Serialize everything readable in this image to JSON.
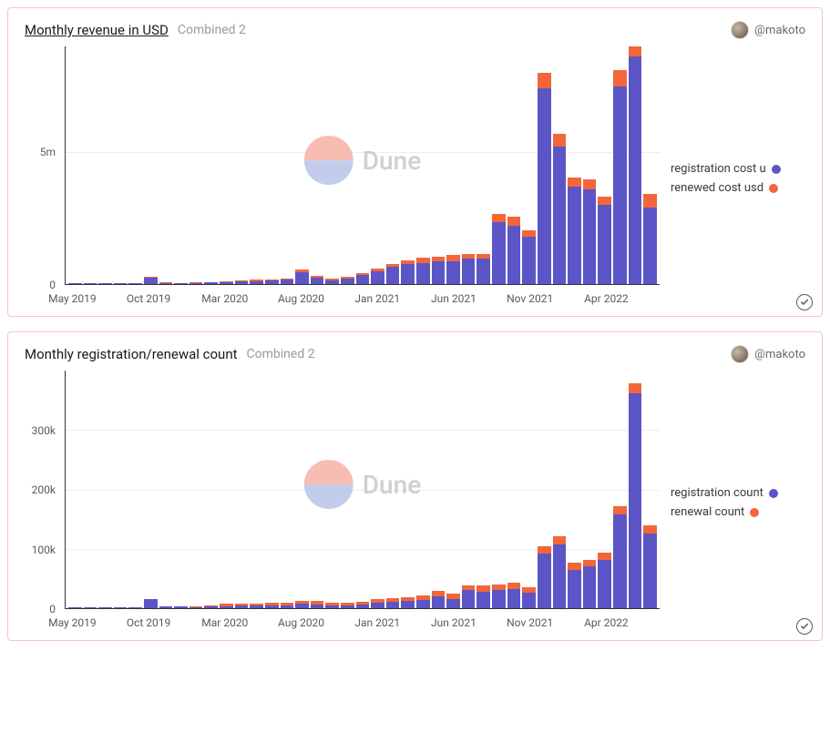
{
  "watermark": {
    "text": "Dune",
    "top_color": "#f6b1a5",
    "bottom_color": "#b8c4e8",
    "text_color": "#c8c8c8"
  },
  "author": {
    "handle": "@makoto"
  },
  "panel_border_color": "#f5c6c0",
  "charts": [
    {
      "title": "Monthly revenue in USD",
      "title_underline": true,
      "subtitle": "Combined 2",
      "type": "stacked-bar",
      "ylim": [
        0,
        9000000
      ],
      "yticks": [
        {
          "value": 0,
          "label": "0"
        },
        {
          "value": 5000000,
          "label": "5m"
        }
      ],
      "grid_color": "#eeeeee",
      "axis_color": "#333333",
      "tick_fontsize": 12,
      "legend": [
        {
          "label": "registration cost u",
          "color": "#5c55c5"
        },
        {
          "label": "renewed cost usd",
          "color": "#f2663a"
        }
      ],
      "series_colors": {
        "a": "#5c55c5",
        "b": "#f2663a"
      },
      "xticks": [
        {
          "index": 0,
          "label": "May 2019"
        },
        {
          "index": 5,
          "label": "Oct 2019"
        },
        {
          "index": 10,
          "label": "Mar 2020"
        },
        {
          "index": 15,
          "label": "Aug 2020"
        },
        {
          "index": 20,
          "label": "Jan 2021"
        },
        {
          "index": 25,
          "label": "Jun 2021"
        },
        {
          "index": 30,
          "label": "Nov 2021"
        },
        {
          "index": 35,
          "label": "Apr 2022"
        }
      ],
      "data": [
        {
          "a": 20000,
          "b": 0
        },
        {
          "a": 20000,
          "b": 0
        },
        {
          "a": 20000,
          "b": 0
        },
        {
          "a": 20000,
          "b": 0
        },
        {
          "a": 20000,
          "b": 0
        },
        {
          "a": 250000,
          "b": 10000
        },
        {
          "a": 50000,
          "b": 10000
        },
        {
          "a": 40000,
          "b": 10000
        },
        {
          "a": 40000,
          "b": 20000
        },
        {
          "a": 60000,
          "b": 20000
        },
        {
          "a": 80000,
          "b": 30000
        },
        {
          "a": 100000,
          "b": 40000
        },
        {
          "a": 120000,
          "b": 40000
        },
        {
          "a": 140000,
          "b": 40000
        },
        {
          "a": 160000,
          "b": 50000
        },
        {
          "a": 450000,
          "b": 100000
        },
        {
          "a": 250000,
          "b": 60000
        },
        {
          "a": 150000,
          "b": 50000
        },
        {
          "a": 200000,
          "b": 60000
        },
        {
          "a": 350000,
          "b": 80000
        },
        {
          "a": 500000,
          "b": 100000
        },
        {
          "a": 650000,
          "b": 120000
        },
        {
          "a": 750000,
          "b": 150000
        },
        {
          "a": 800000,
          "b": 200000
        },
        {
          "a": 850000,
          "b": 200000
        },
        {
          "a": 850000,
          "b": 250000
        },
        {
          "a": 950000,
          "b": 200000
        },
        {
          "a": 950000,
          "b": 200000
        },
        {
          "a": 2350000,
          "b": 300000
        },
        {
          "a": 2200000,
          "b": 350000
        },
        {
          "a": 1800000,
          "b": 250000
        },
        {
          "a": 7400000,
          "b": 600000
        },
        {
          "a": 5200000,
          "b": 500000
        },
        {
          "a": 3700000,
          "b": 350000
        },
        {
          "a": 3600000,
          "b": 350000
        },
        {
          "a": 3000000,
          "b": 300000
        },
        {
          "a": 7500000,
          "b": 600000
        },
        {
          "a": 8700000,
          "b": 400000
        },
        {
          "a": 2900000,
          "b": 500000
        }
      ]
    },
    {
      "title": "Monthly registration/renewal count",
      "title_underline": false,
      "subtitle": "Combined 2",
      "type": "stacked-bar",
      "ylim": [
        0,
        400000
      ],
      "yticks": [
        {
          "value": 0,
          "label": "0"
        },
        {
          "value": 100000,
          "label": "100k"
        },
        {
          "value": 200000,
          "label": "200k"
        },
        {
          "value": 300000,
          "label": "300k"
        }
      ],
      "grid_color": "#eeeeee",
      "axis_color": "#333333",
      "tick_fontsize": 12,
      "legend": [
        {
          "label": "registration count",
          "color": "#5c55c5"
        },
        {
          "label": "renewal count",
          "color": "#f2663a"
        }
      ],
      "series_colors": {
        "a": "#5c55c5",
        "b": "#f2663a"
      },
      "xticks": [
        {
          "index": 0,
          "label": "May 2019"
        },
        {
          "index": 5,
          "label": "Oct 2019"
        },
        {
          "index": 10,
          "label": "Mar 2020"
        },
        {
          "index": 15,
          "label": "Aug 2020"
        },
        {
          "index": 20,
          "label": "Jan 2021"
        },
        {
          "index": 25,
          "label": "Jun 2021"
        },
        {
          "index": 30,
          "label": "Nov 2021"
        },
        {
          "index": 35,
          "label": "Apr 2022"
        }
      ],
      "data": [
        {
          "a": 2000,
          "b": 0
        },
        {
          "a": 2000,
          "b": 0
        },
        {
          "a": 2000,
          "b": 0
        },
        {
          "a": 2000,
          "b": 0
        },
        {
          "a": 2000,
          "b": 0
        },
        {
          "a": 15000,
          "b": 500
        },
        {
          "a": 3000,
          "b": 500
        },
        {
          "a": 3000,
          "b": 800
        },
        {
          "a": 2000,
          "b": 1500
        },
        {
          "a": 2500,
          "b": 2500
        },
        {
          "a": 3500,
          "b": 3500
        },
        {
          "a": 4000,
          "b": 4000
        },
        {
          "a": 4500,
          "b": 3500
        },
        {
          "a": 5000,
          "b": 4000
        },
        {
          "a": 5000,
          "b": 3500
        },
        {
          "a": 7000,
          "b": 6000
        },
        {
          "a": 6000,
          "b": 6000
        },
        {
          "a": 4000,
          "b": 4500
        },
        {
          "a": 5000,
          "b": 5000
        },
        {
          "a": 6000,
          "b": 5500
        },
        {
          "a": 9000,
          "b": 6000
        },
        {
          "a": 10000,
          "b": 6500
        },
        {
          "a": 12000,
          "b": 6500
        },
        {
          "a": 14000,
          "b": 8000
        },
        {
          "a": 20000,
          "b": 9000
        },
        {
          "a": 16000,
          "b": 8000
        },
        {
          "a": 30000,
          "b": 9000
        },
        {
          "a": 28000,
          "b": 10000
        },
        {
          "a": 30000,
          "b": 10000
        },
        {
          "a": 32000,
          "b": 11000
        },
        {
          "a": 26000,
          "b": 10000
        },
        {
          "a": 92000,
          "b": 12000
        },
        {
          "a": 108000,
          "b": 13000
        },
        {
          "a": 65000,
          "b": 11000
        },
        {
          "a": 70000,
          "b": 11000
        },
        {
          "a": 82000,
          "b": 12000
        },
        {
          "a": 158000,
          "b": 14000
        },
        {
          "a": 362000,
          "b": 17000
        },
        {
          "a": 126000,
          "b": 14000
        }
      ]
    }
  ]
}
